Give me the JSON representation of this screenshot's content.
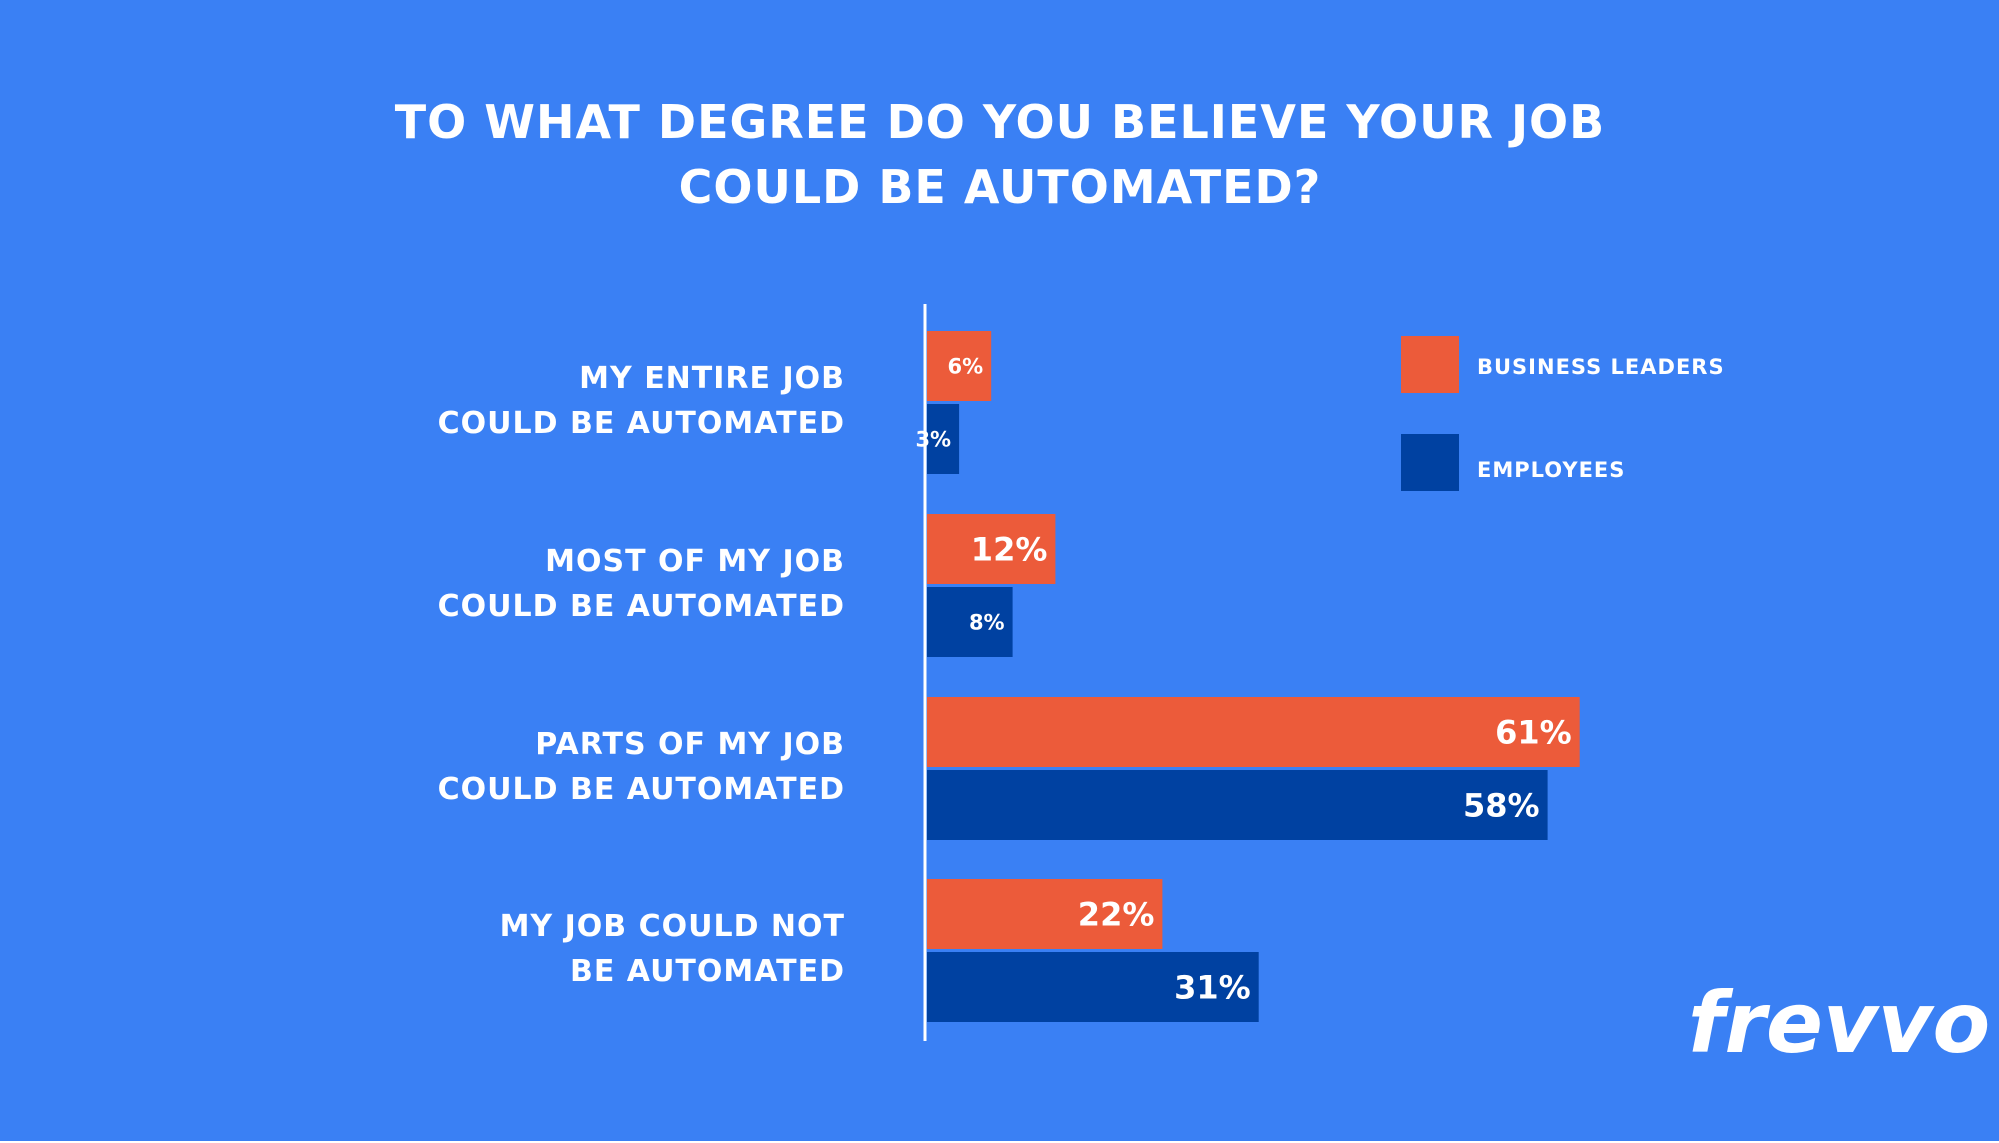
{
  "chart_data": {
    "type": "bar",
    "orientation": "horizontal",
    "title": "TO WHAT DEGREE DO YOU BELIEVE YOUR JOB COULD BE AUTOMATED?",
    "title_lines": [
      "TO WHAT DEGREE DO YOU BELIEVE YOUR JOB",
      "COULD BE AUTOMATED?"
    ],
    "categories": [
      "MY ENTIRE JOB COULD BE AUTOMATED",
      "MOST OF MY JOB COULD BE AUTOMATED",
      "PARTS OF MY JOB COULD BE AUTOMATED",
      "MY JOB COULD NOT BE AUTOMATED"
    ],
    "category_lines": [
      [
        "MY ENTIRE JOB",
        "COULD BE AUTOMATED"
      ],
      [
        "MOST OF MY JOB",
        "COULD BE AUTOMATED"
      ],
      [
        "PARTS OF MY JOB",
        "COULD BE AUTOMATED"
      ],
      [
        "MY JOB COULD NOT",
        "BE AUTOMATED"
      ]
    ],
    "series": [
      {
        "name": "BUSINESS LEADERS",
        "color": "#ec5b3a",
        "values": [
          6,
          12,
          61,
          22
        ],
        "labels": [
          "6%",
          "12%",
          "61%",
          "22%"
        ]
      },
      {
        "name": "EMPLOYEES",
        "color": "#0041a1",
        "values": [
          3,
          8,
          58,
          31
        ],
        "labels": [
          "3%",
          "8%",
          "58%",
          "31%"
        ]
      }
    ],
    "unit": "%",
    "legend_position": "top-right",
    "grid": false
  },
  "logo": {
    "text": "frevvo"
  },
  "colors": {
    "background": "#3a80f4",
    "axis_line": "#ffffff",
    "text": "#ffffff"
  }
}
